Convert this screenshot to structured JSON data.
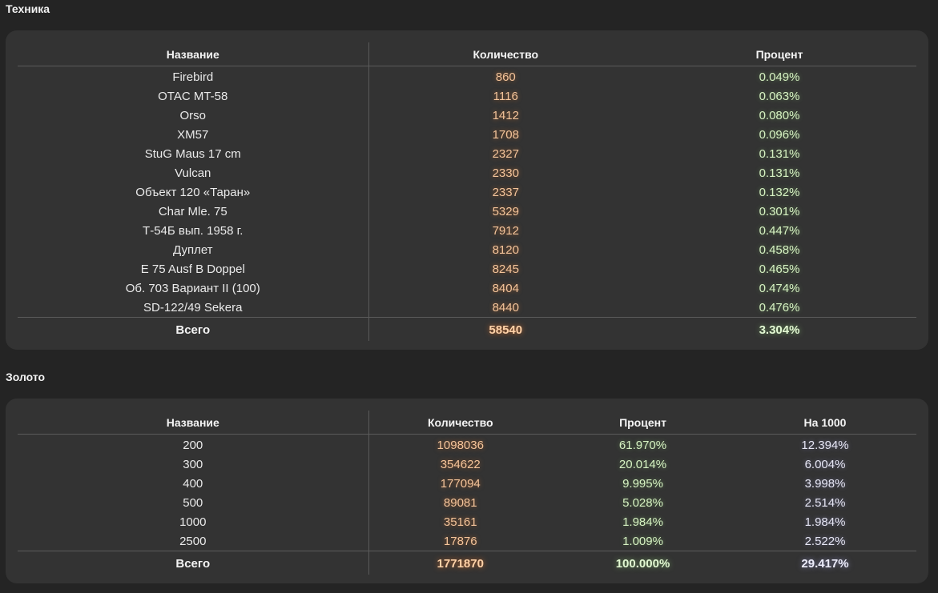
{
  "tech": {
    "title": "Техника",
    "headers": {
      "name": "Название",
      "qty": "Количество",
      "pct": "Процент"
    },
    "rows": [
      {
        "name": "Firebird",
        "qty": "860",
        "pct": "0.049%"
      },
      {
        "name": "OTAC MT-58",
        "qty": "1116",
        "pct": "0.063%"
      },
      {
        "name": "Orso",
        "qty": "1412",
        "pct": "0.080%"
      },
      {
        "name": "XM57",
        "qty": "1708",
        "pct": "0.096%"
      },
      {
        "name": "StuG Maus 17 cm",
        "qty": "2327",
        "pct": "0.131%"
      },
      {
        "name": "Vulcan",
        "qty": "2330",
        "pct": "0.131%"
      },
      {
        "name": "Объект 120 «Таран»",
        "qty": "2337",
        "pct": "0.132%"
      },
      {
        "name": "Char Mle. 75",
        "qty": "5329",
        "pct": "0.301%"
      },
      {
        "name": "Т-54Б вып. 1958 г.",
        "qty": "7912",
        "pct": "0.447%"
      },
      {
        "name": "Дуплет",
        "qty": "8120",
        "pct": "0.458%"
      },
      {
        "name": "E 75 Ausf B Doppel",
        "qty": "8245",
        "pct": "0.465%"
      },
      {
        "name": "Об. 703 Вариант II (100)",
        "qty": "8404",
        "pct": "0.474%"
      },
      {
        "name": "SD-122/49 Sekera",
        "qty": "8440",
        "pct": "0.476%"
      }
    ],
    "total": {
      "name": "Всего",
      "qty": "58540",
      "pct": "3.304%"
    }
  },
  "gold": {
    "title": "Золото",
    "headers": {
      "name": "Название",
      "qty": "Количество",
      "pct": "Процент",
      "per": "На 1000"
    },
    "rows": [
      {
        "name": "200",
        "qty": "1098036",
        "pct": "61.970%",
        "per": "12.394%"
      },
      {
        "name": "300",
        "qty": "354622",
        "pct": "20.014%",
        "per": "6.004%"
      },
      {
        "name": "400",
        "qty": "177094",
        "pct": "9.995%",
        "per": "3.998%"
      },
      {
        "name": "500",
        "qty": "89081",
        "pct": "5.028%",
        "per": "2.514%"
      },
      {
        "name": "1000",
        "qty": "35161",
        "pct": "1.984%",
        "per": "1.984%"
      },
      {
        "name": "2500",
        "qty": "17876",
        "pct": "1.009%",
        "per": "2.522%"
      }
    ],
    "total": {
      "name": "Всего",
      "qty": "1771870",
      "pct": "100.000%",
      "per": "29.417%"
    }
  }
}
